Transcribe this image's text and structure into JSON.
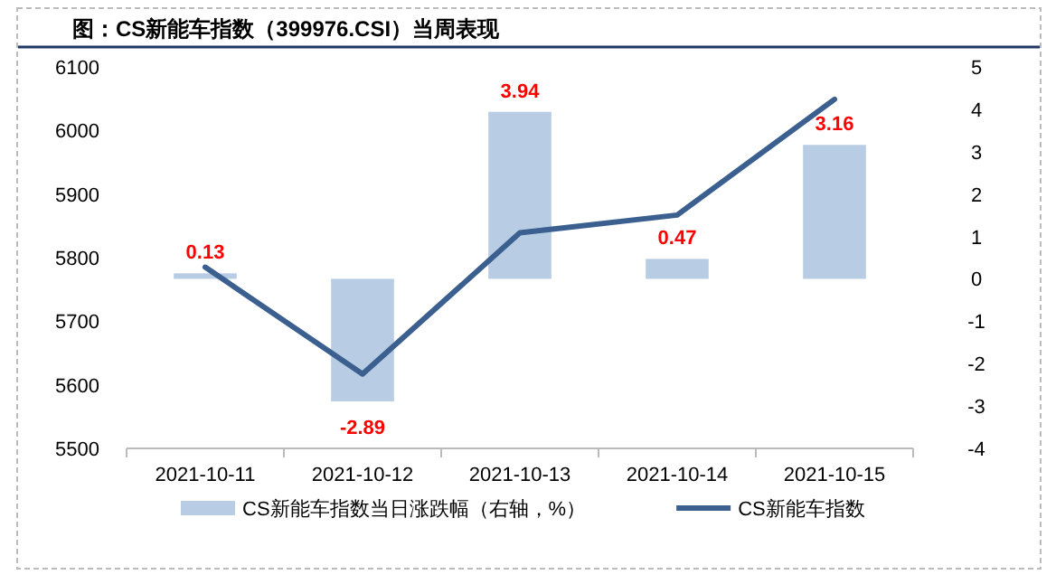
{
  "chart_data": {
    "type": "bar",
    "title": "图：CS新能车指数（399976.CSI）当周表现",
    "categories": [
      "2021-10-11",
      "2021-10-12",
      "2021-10-13",
      "2021-10-14",
      "2021-10-15"
    ],
    "series": [
      {
        "name": "CS新能车指数当日涨跌幅（右轴，%）",
        "axis": "y2",
        "color": "#b8cce4",
        "values": [
          0.13,
          -2.89,
          3.94,
          0.47,
          3.16
        ],
        "value_labels": [
          "0.13",
          "-2.89",
          "3.94",
          "0.47",
          "3.16"
        ]
      },
      {
        "name": "CS新能车指数",
        "type": "line",
        "color": "#3b6090",
        "values": [
          5785,
          5617,
          5839,
          5867,
          6049
        ]
      }
    ],
    "ylim": [
      5500,
      6100
    ],
    "yticks": [
      5500,
      5600,
      5700,
      5800,
      5900,
      6000,
      6100
    ],
    "y2lim": [
      -4,
      5
    ],
    "y2ticks": [
      -4,
      -3,
      -2,
      -1,
      0,
      1,
      2,
      3,
      4,
      5
    ],
    "legend": "bottom",
    "grid": false
  }
}
